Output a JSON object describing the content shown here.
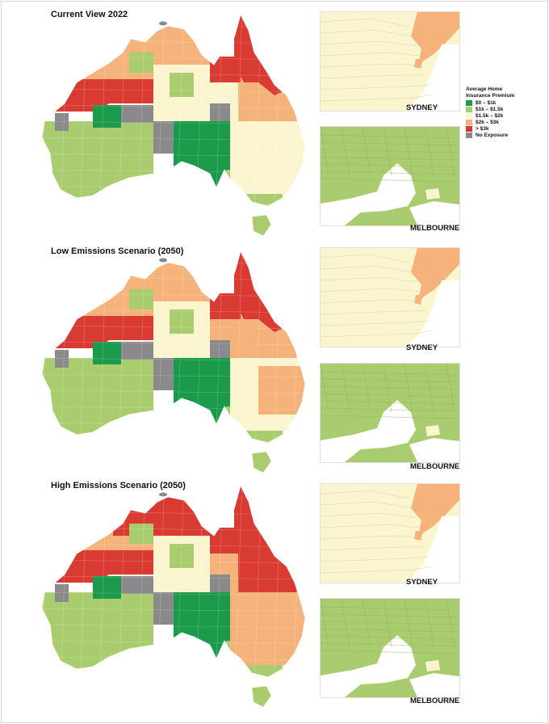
{
  "panels": [
    {
      "title": "Current View 2022",
      "regions": {
        "wa_north": "orange",
        "pilbara": "red",
        "kimberley": "orange",
        "wa_central": "lightgreen",
        "wa_gray": "gray",
        "wa_green": "darkgreen",
        "wa_south": "lightgreen",
        "nt_top": "orange",
        "nt_central": "lightgreen",
        "nt_south": "pale",
        "nt_gray": "gray",
        "qld_north": "red",
        "qld_gulf": "red",
        "qld_mid": "orange",
        "qld_west": "pale",
        "qld_south": "pale",
        "qld_gray": "gray",
        "sa_gray": "gray",
        "sa_main": "darkgreen",
        "sa_south": "lightgreen",
        "nsw_main": "pale",
        "nsw_coast": "pale",
        "vic": "lightgreen",
        "tas": "lightgreen"
      },
      "sydney": {
        "coast": "orange",
        "inland": "pale"
      },
      "melbourne": {
        "land": "lightgreen",
        "patch": "pale"
      }
    },
    {
      "title": "Low Emissions Scenario (2050)",
      "regions": {
        "wa_north": "orange",
        "pilbara": "red",
        "kimberley": "orange",
        "wa_central": "lightgreen",
        "wa_gray": "gray",
        "wa_green": "darkgreen",
        "wa_south": "lightgreen",
        "nt_top": "orange",
        "nt_central": "lightgreen",
        "nt_south": "pale",
        "nt_gray": "gray",
        "qld_north": "red",
        "qld_gulf": "red",
        "qld_mid": "orange",
        "qld_west": "orange",
        "qld_south": "orange",
        "qld_gray": "gray",
        "sa_gray": "gray",
        "sa_main": "darkgreen",
        "sa_south": "lightgreen",
        "nsw_main": "pale",
        "nsw_coast": "orange",
        "vic": "lightgreen",
        "tas": "lightgreen"
      },
      "sydney": {
        "coast": "orange",
        "inland": "pale"
      },
      "melbourne": {
        "land": "lightgreen",
        "patch": "pale"
      }
    },
    {
      "title": "High Emissions Scenario (2050)",
      "regions": {
        "wa_north": "orange",
        "pilbara": "red",
        "kimberley": "red",
        "wa_central": "lightgreen",
        "wa_gray": "gray",
        "wa_green": "darkgreen",
        "wa_south": "lightgreen",
        "nt_top": "red",
        "nt_central": "lightgreen",
        "nt_south": "pale",
        "nt_gray": "gray",
        "qld_north": "red",
        "qld_gulf": "red",
        "qld_mid": "red",
        "qld_west": "orange",
        "qld_south": "orange",
        "qld_gray": "gray",
        "sa_gray": "gray",
        "sa_main": "darkgreen",
        "sa_south": "lightgreen",
        "nsw_main": "orange",
        "nsw_coast": "orange",
        "vic": "lightgreen",
        "tas": "lightgreen"
      },
      "sydney": {
        "coast": "orange",
        "inland": "pale"
      },
      "melbourne": {
        "land": "lightgreen",
        "patch": "pale"
      }
    }
  ],
  "city_labels": {
    "sydney": "SYDNEY",
    "melbourne": "MELBOURNE"
  },
  "legend": {
    "title": "Average Home Insurance Premium",
    "items": [
      {
        "key": "darkgreen",
        "label": "$0 – $1k",
        "color": "#1a9a4a"
      },
      {
        "key": "lightgreen",
        "label": "$1k – $1.5k",
        "color": "#a9cd6e"
      },
      {
        "key": "pale",
        "label": "$1.5k – $2k",
        "color": "#fbf5cf"
      },
      {
        "key": "orange",
        "label": "$2k – $3k",
        "color": "#f5b27a"
      },
      {
        "key": "red",
        "label": "> $3k",
        "color": "#d93b33"
      },
      {
        "key": "gray",
        "label": "No Exposure",
        "color": "#8a8a8c"
      }
    ]
  }
}
